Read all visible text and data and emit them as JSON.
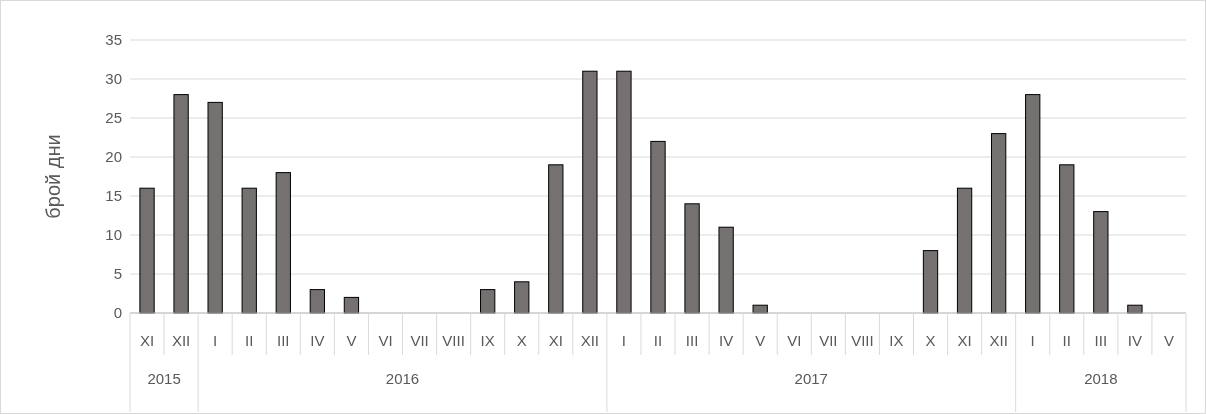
{
  "chart_data": {
    "type": "bar",
    "ylabel": "брой дни",
    "categories": [
      "XI",
      "XII",
      "I",
      "II",
      "III",
      "IV",
      "V",
      "VI",
      "VII",
      "VIII",
      "IX",
      "X",
      "XI",
      "XII",
      "I",
      "II",
      "III",
      "IV",
      "V",
      "VI",
      "VII",
      "VIII",
      "IX",
      "X",
      "XI",
      "XII",
      "I",
      "II",
      "III",
      "IV",
      "V"
    ],
    "values": [
      16,
      28,
      27,
      16,
      18,
      3,
      2,
      0,
      0,
      0,
      3,
      4,
      19,
      31,
      31,
      22,
      14,
      11,
      1,
      0,
      0,
      0,
      0,
      8,
      16,
      23,
      28,
      19,
      13,
      1,
      0
    ],
    "color": "#767171",
    "ylim": [
      0,
      35
    ],
    "yticks": [
      0,
      5,
      10,
      15,
      20,
      25,
      30,
      35
    ],
    "grid": "y",
    "annotations": [
      "2015",
      "2016",
      "2017",
      "2018"
    ]
  }
}
